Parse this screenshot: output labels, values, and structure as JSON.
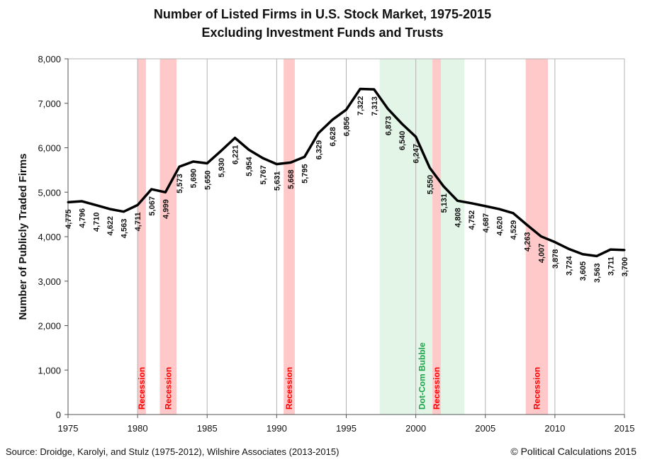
{
  "title": "Number of Listed Firms in U.S. Stock Market, 1975-2015",
  "subtitle": "Excluding Investment Funds and Trusts",
  "source": "Source: Droidge, Karolyi, and Stulz (1975-2012), Wilshire Associates (2013-2015)",
  "credit": "© Political Calculations 2015",
  "colors": {
    "line": "#000000",
    "recession_band": "#ffc6c6",
    "recession_text": "#ff0000",
    "bubble_band": "#e2f5e6",
    "bubble_text": "#1fa34a",
    "grid": "#b3b3b3"
  },
  "chart_data": {
    "type": "line",
    "ylabel": "Number of Publicly Traded Firms",
    "xlabel": "",
    "xlim": [
      1975,
      2015
    ],
    "ylim": [
      0,
      8000
    ],
    "x_ticks": [
      1975,
      1980,
      1985,
      1990,
      1995,
      2000,
      2005,
      2010,
      2015
    ],
    "y_ticks": [
      0,
      1000,
      2000,
      3000,
      4000,
      5000,
      6000,
      7000,
      8000
    ],
    "y_tick_labels": [
      "0",
      "1,000",
      "2,000",
      "3,000",
      "4,000",
      "5,000",
      "6,000",
      "7,000",
      "8,000"
    ],
    "grid": "vertical",
    "x": [
      1975,
      1976,
      1977,
      1978,
      1979,
      1980,
      1981,
      1982,
      1983,
      1984,
      1985,
      1986,
      1987,
      1988,
      1989,
      1990,
      1991,
      1992,
      1993,
      1994,
      1995,
      1996,
      1997,
      1998,
      1999,
      2000,
      2001,
      2002,
      2003,
      2004,
      2005,
      2006,
      2007,
      2008,
      2009,
      2010,
      2011,
      2012,
      2013,
      2014,
      2015
    ],
    "values": [
      4775,
      4796,
      4710,
      4622,
      4563,
      4711,
      5067,
      4999,
      5573,
      5690,
      5650,
      5930,
      6221,
      5954,
      5767,
      5631,
      5668,
      5795,
      6329,
      6628,
      6856,
      7322,
      7313,
      6873,
      6540,
      6247,
      5550,
      5131,
      4808,
      4752,
      4687,
      4620,
      4529,
      4263,
      4007,
      3878,
      3724,
      3605,
      3563,
      3711,
      3700
    ],
    "labels": [
      "4,775",
      "4,796",
      "4,710",
      "4,622",
      "4,563",
      "4,711",
      "5,067",
      "4,999",
      "5,573",
      "5,690",
      "5,650",
      "5,930",
      "6,221",
      "5,954",
      "5,767",
      "5,631",
      "5,668",
      "5,795",
      "6,329",
      "6,628",
      "6,856",
      "7,322",
      "7,313",
      "6,873",
      "6,540",
      "6,247",
      "5,550",
      "5,131",
      "4,808",
      "4,752",
      "4,687",
      "4,620",
      "4,529",
      "4,263",
      "4,007",
      "3,878",
      "3,724",
      "3,605",
      "3,563",
      "3,711",
      "3,700"
    ],
    "bands": [
      {
        "kind": "recession",
        "label": "Recession",
        "start": 1980.0,
        "end": 1980.6
      },
      {
        "kind": "recession",
        "label": "Recession",
        "start": 1981.6,
        "end": 1982.8
      },
      {
        "kind": "recession",
        "label": "Recession",
        "start": 1990.5,
        "end": 1991.3
      },
      {
        "kind": "bubble",
        "label": "Dot-Com Bubble",
        "start": 1997.4,
        "end": 2003.5
      },
      {
        "kind": "recession",
        "label": "Recession",
        "start": 2001.2,
        "end": 2001.8
      },
      {
        "kind": "recession",
        "label": "Recession",
        "start": 2007.9,
        "end": 2009.5
      }
    ]
  }
}
